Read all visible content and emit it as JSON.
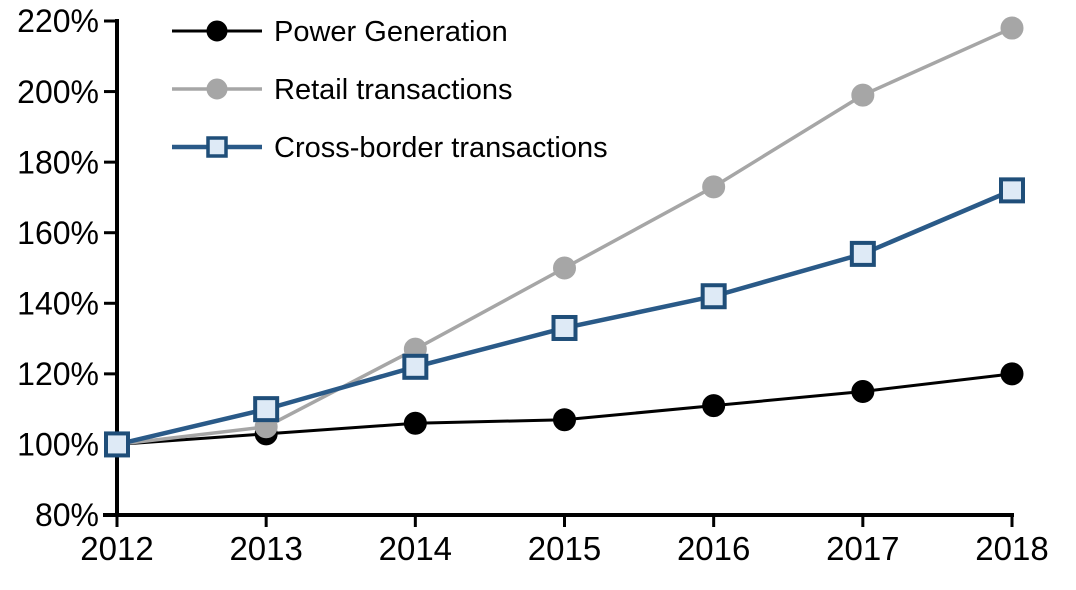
{
  "chart_data": {
    "type": "line",
    "title": "",
    "x": [
      "2012",
      "2013",
      "2014",
      "2015",
      "2016",
      "2017",
      "2018"
    ],
    "x_tick_labels": [
      "2012",
      "2013",
      "2014",
      "2015",
      "2016",
      "2017",
      "2018"
    ],
    "y_axis": {
      "min": 80,
      "max": 220,
      "step": 20,
      "format": "percent",
      "tick_labels": [
        "80%",
        "100%",
        "120%",
        "140%",
        "160%",
        "180%",
        "200%",
        "220%"
      ]
    },
    "grid": "off",
    "legend": {
      "position": "top-left-inside",
      "entries": [
        "Power Generation",
        "Retail transactions",
        "Cross-border transactions"
      ]
    },
    "series": [
      {
        "name": "Power Generation",
        "marker": "circle",
        "line_color": "#000000",
        "marker_fill": "#000000",
        "marker_stroke": "#000000",
        "line_width": 3,
        "values": [
          100,
          103,
          106,
          107,
          111,
          115,
          120
        ]
      },
      {
        "name": "Retail transactions",
        "marker": "circle",
        "line_color": "#a6a6a6",
        "marker_fill": "#a6a6a6",
        "marker_stroke": "#a6a6a6",
        "line_width": 3.5,
        "values": [
          100,
          105,
          127,
          150,
          173,
          199,
          218
        ]
      },
      {
        "name": "Cross-border transactions",
        "marker": "square",
        "line_color": "#2a5a88",
        "marker_fill": "#deeaf6",
        "marker_stroke": "#1f4e79",
        "line_width": 4.5,
        "values": [
          100,
          110,
          122,
          133,
          142,
          154,
          172
        ]
      }
    ],
    "colors": {
      "axis": "#000000",
      "background": "#ffffff",
      "accent_blue": "#2a5a88",
      "accent_gray": "#a6a6a6",
      "accent_black": "#000000"
    }
  }
}
